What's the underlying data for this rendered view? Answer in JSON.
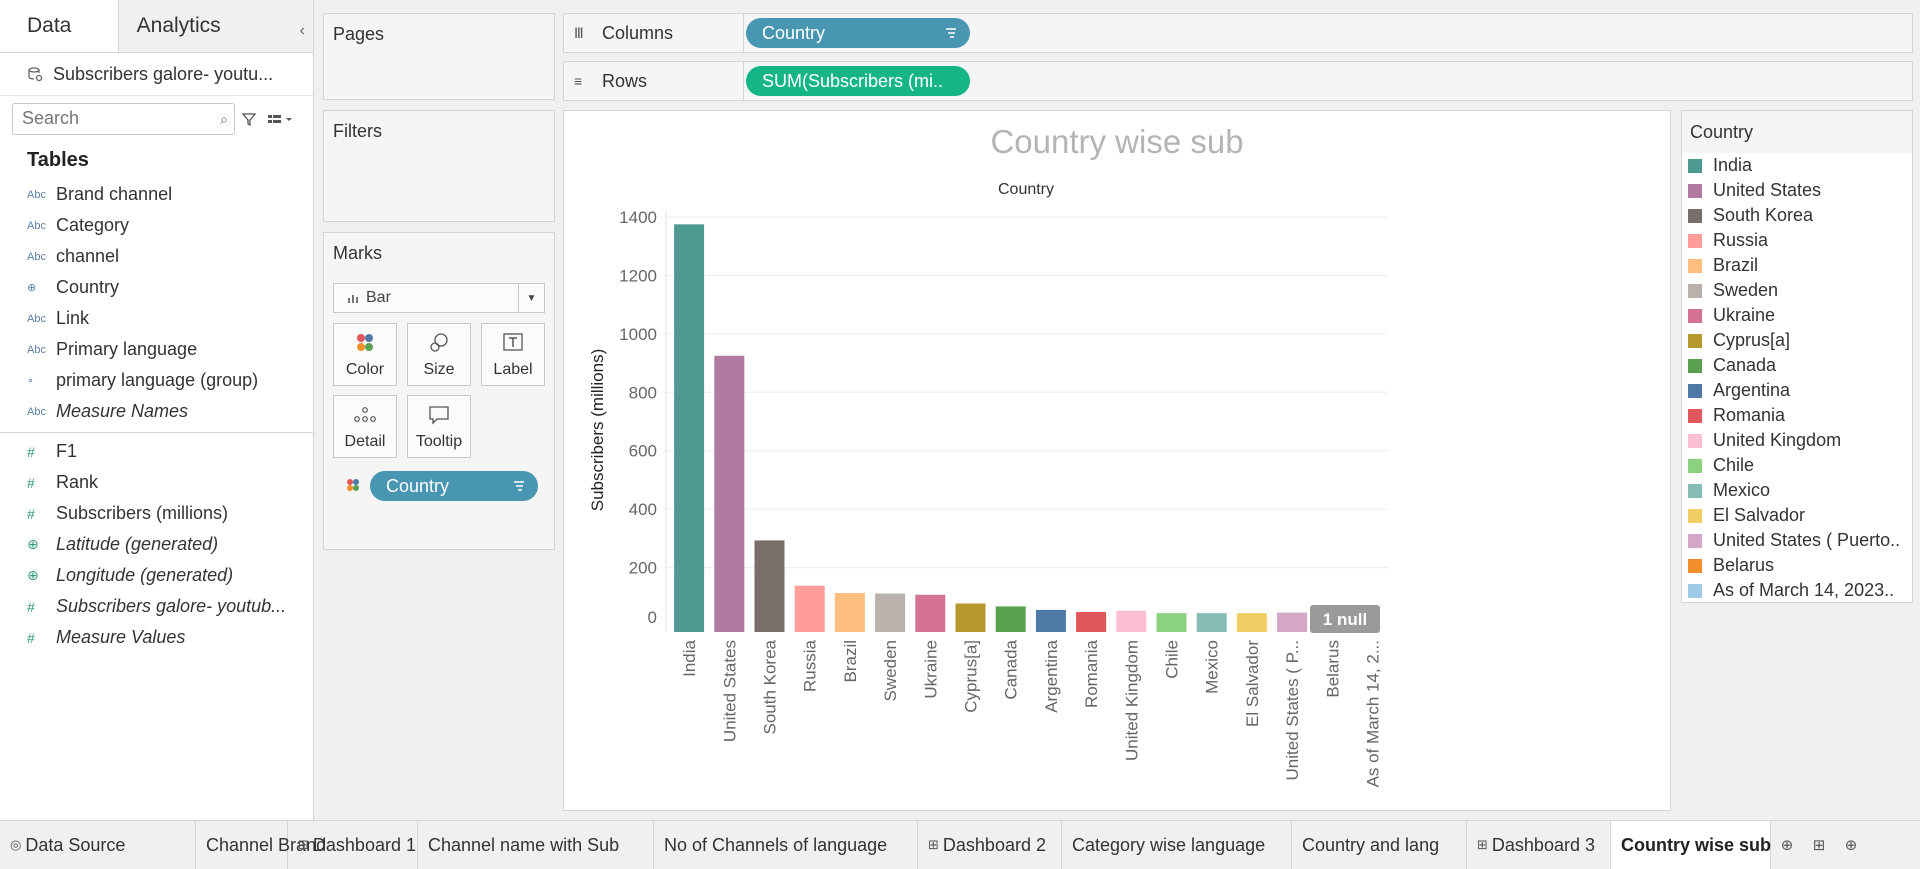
{
  "left_panel": {
    "tab_data": "Data",
    "tab_analytics": "Analytics",
    "data_source": "Subscribers galore- youtu...",
    "search_placeholder": "Search",
    "tables_heading": "Tables",
    "dimension_fields": [
      {
        "label": "Brand channel",
        "type": "Abc",
        "italic": false
      },
      {
        "label": "Category",
        "type": "Abc",
        "italic": false
      },
      {
        "label": "channel",
        "type": "Abc",
        "italic": false
      },
      {
        "label": "Country",
        "type": "globe",
        "italic": false
      },
      {
        "label": "Link",
        "type": "Abc",
        "italic": false
      },
      {
        "label": "Primary language",
        "type": "Abc",
        "italic": false
      },
      {
        "label": "primary language (group)",
        "type": "clip",
        "italic": false
      },
      {
        "label": "Measure Names",
        "type": "Abc",
        "italic": true
      }
    ],
    "measure_fields": [
      {
        "label": "F1",
        "type": "#",
        "italic": false
      },
      {
        "label": "Rank",
        "type": "#",
        "italic": false
      },
      {
        "label": "Subscribers (millions)",
        "type": "#",
        "italic": false
      },
      {
        "label": "Latitude (generated)",
        "type": "globe",
        "italic": true
      },
      {
        "label": "Longitude (generated)",
        "type": "globe",
        "italic": true
      },
      {
        "label": "Subscribers galore- youtub...",
        "type": "#",
        "italic": true
      },
      {
        "label": "Measure Values",
        "type": "#",
        "italic": true
      }
    ]
  },
  "cards": {
    "pages": "Pages",
    "filters": "Filters",
    "marks": "Marks",
    "mark_type": "Bar",
    "mark_buttons": [
      "Color",
      "Size",
      "Label",
      "Detail",
      "Tooltip"
    ],
    "color_pill": "Country"
  },
  "shelves": {
    "columns_label": "Columns",
    "columns_pill": "Country",
    "rows_label": "Rows",
    "rows_pill": "SUM(Subscribers (mi.."
  },
  "legend": {
    "title": "Country",
    "items": [
      {
        "label": "India",
        "color": "#4e9a93"
      },
      {
        "label": "United States",
        "color": "#b07aa1"
      },
      {
        "label": "South Korea",
        "color": "#7a6e6a"
      },
      {
        "label": "Russia",
        "color": "#ff9d9a"
      },
      {
        "label": "Brazil",
        "color": "#ffbe7d"
      },
      {
        "label": "Sweden",
        "color": "#bab0ac"
      },
      {
        "label": "Ukraine",
        "color": "#d37295"
      },
      {
        "label": "Cyprus[a]",
        "color": "#b6992d"
      },
      {
        "label": "Canada",
        "color": "#59a14f"
      },
      {
        "label": "Argentina",
        "color": "#4e79a7"
      },
      {
        "label": "Romania",
        "color": "#e15759"
      },
      {
        "label": "United Kingdom",
        "color": "#fabfd2"
      },
      {
        "label": "Chile",
        "color": "#8cd17d"
      },
      {
        "label": "Mexico",
        "color": "#86bcb6"
      },
      {
        "label": "El Salvador",
        "color": "#f1ce63"
      },
      {
        "label": "United States ( Puerto..",
        "color": "#d4a6c8"
      },
      {
        "label": "Belarus",
        "color": "#f28e2b"
      },
      {
        "label": "As of March 14, 2023..",
        "color": "#a0cbe8"
      }
    ]
  },
  "chart_data": {
    "type": "bar",
    "title": "Country wise sub",
    "header": "Country",
    "ylabel": "Subscribers (millions)",
    "ylim": [
      0,
      1400
    ],
    "yticks": [
      0,
      200,
      400,
      600,
      800,
      1000,
      1200,
      1400
    ],
    "categories": [
      "India",
      "United States",
      "South Korea",
      "Russia",
      "Brazil",
      "Sweden",
      "Ukraine",
      "Cyprus[a]",
      "Canada",
      "Argentina",
      "Romania",
      "United Kingdom",
      "Chile",
      "Mexico",
      "El Salvador",
      "United States ( P...",
      "Belarus",
      "As of March 14, 2..."
    ],
    "values": [
      1375,
      925,
      293,
      138,
      113,
      111,
      107,
      77,
      67,
      55,
      48,
      52,
      44,
      44,
      44,
      46,
      30,
      0
    ],
    "null_indicator": "1 null",
    "grid": true
  },
  "bottom_tabs": [
    {
      "label": "Data Source",
      "icon": "db",
      "active": false
    },
    {
      "label": "Channel Brand",
      "icon": "",
      "active": false
    },
    {
      "label": "Dashboard 1",
      "icon": "dash",
      "active": false
    },
    {
      "label": "Channel name with Sub",
      "icon": "",
      "active": false
    },
    {
      "label": "No of Channels of language",
      "icon": "",
      "active": false
    },
    {
      "label": "Dashboard 2",
      "icon": "dash",
      "active": false
    },
    {
      "label": "Category wise language",
      "icon": "",
      "active": false
    },
    {
      "label": "Country and lang",
      "icon": "",
      "active": false
    },
    {
      "label": "Dashboard 3",
      "icon": "dash",
      "active": false
    },
    {
      "label": "Country wise sub",
      "icon": "",
      "active": true
    }
  ]
}
